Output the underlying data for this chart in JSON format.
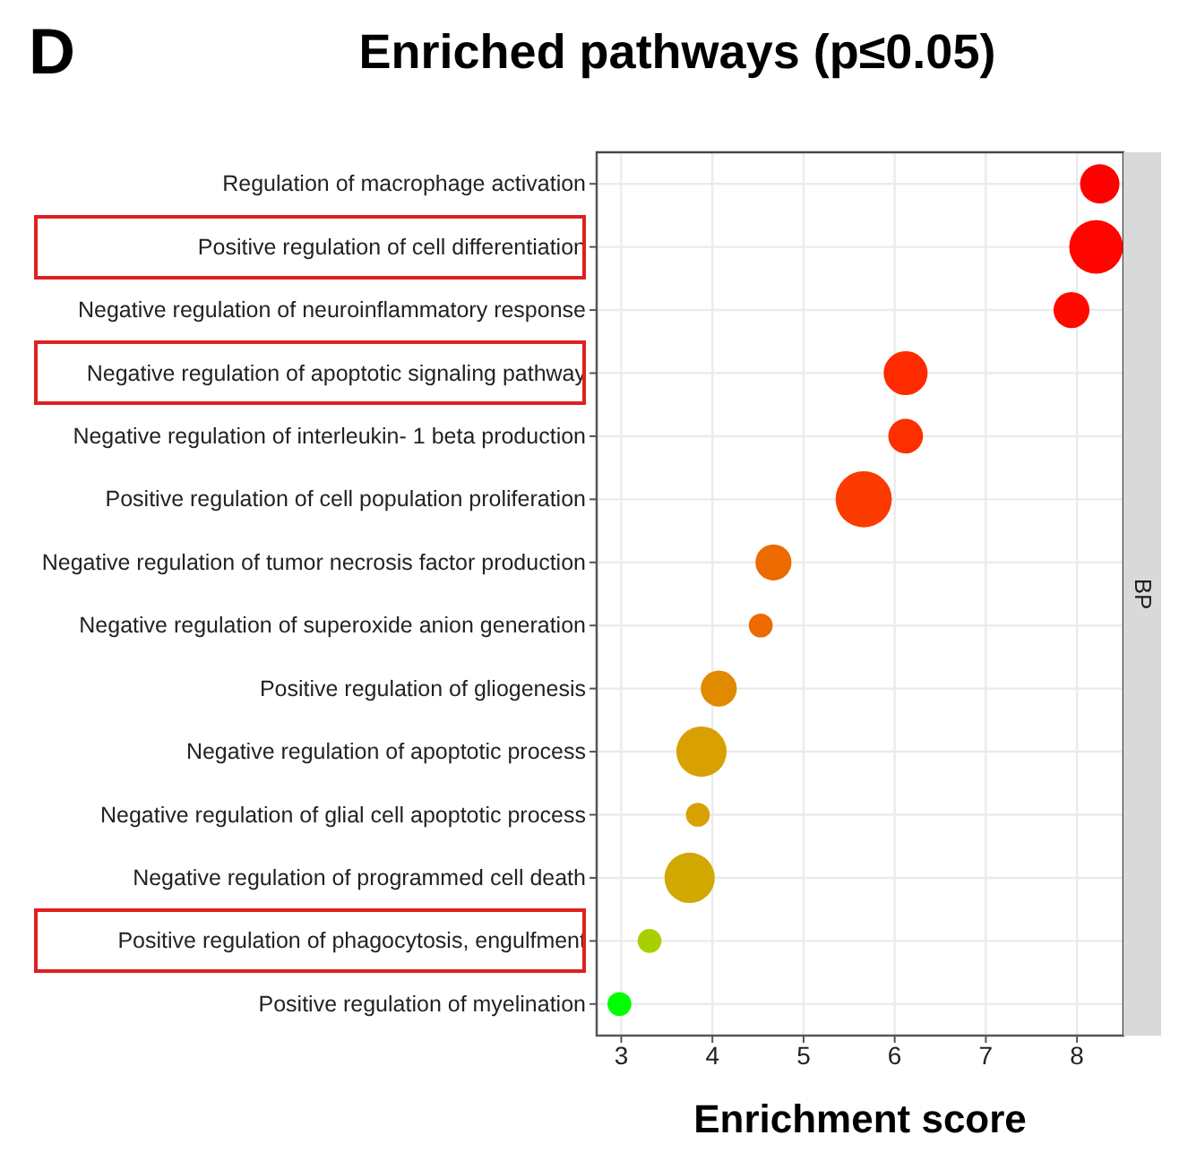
{
  "chart_data": {
    "type": "bubble",
    "title": "Enriched pathways (p≤0.05)",
    "xlabel": "Enrichment score",
    "annotations": [
      "D",
      "BP"
    ],
    "categories": [
      "Regulation of macrophage activation",
      "Positive regulation of cell differentiation",
      "Negative regulation of neuroinflammatory response",
      "Negative regulation of apoptotic signaling pathway",
      "Negative regulation of interleukin- 1 beta production",
      "Positive regulation of cell population proliferation",
      "Negative regulation of tumor necrosis factor production",
      "Negative regulation of superoxide anion generation",
      "Positive regulation of gliogenesis",
      "Negative regulation of apoptotic process",
      "Negative regulation of glial cell apoptotic process",
      "Negative regulation of programmed cell death",
      "Positive regulation of phagocytosis, engulfment",
      "Positive regulation of myelination"
    ],
    "values": [
      8.25,
      8.21,
      7.94,
      6.12,
      6.12,
      5.66,
      4.67,
      4.53,
      4.07,
      3.88,
      3.84,
      3.75,
      3.31,
      2.98
    ],
    "sizes": [
      0.49,
      0.91,
      0.41,
      0.61,
      0.38,
      1,
      0.41,
      0.18,
      0.41,
      0.8,
      0.18,
      0.8,
      0.18,
      0.18
    ],
    "colors": [
      "#ff0000",
      "#ff0500",
      "#ff0a00",
      "#fe2a00",
      "#fc2f00",
      "#fc3b00",
      "#ec6a00",
      "#ec6a00",
      "#e08a00",
      "#d8a000",
      "#d8a000",
      "#d0a800",
      "#a8d000",
      "#00ff00"
    ],
    "orientation": "horizontal",
    "xlim": [
      2.73,
      8.51
    ],
    "xticks": [
      3,
      4,
      5,
      6,
      7,
      8
    ],
    "grid": true
  }
}
